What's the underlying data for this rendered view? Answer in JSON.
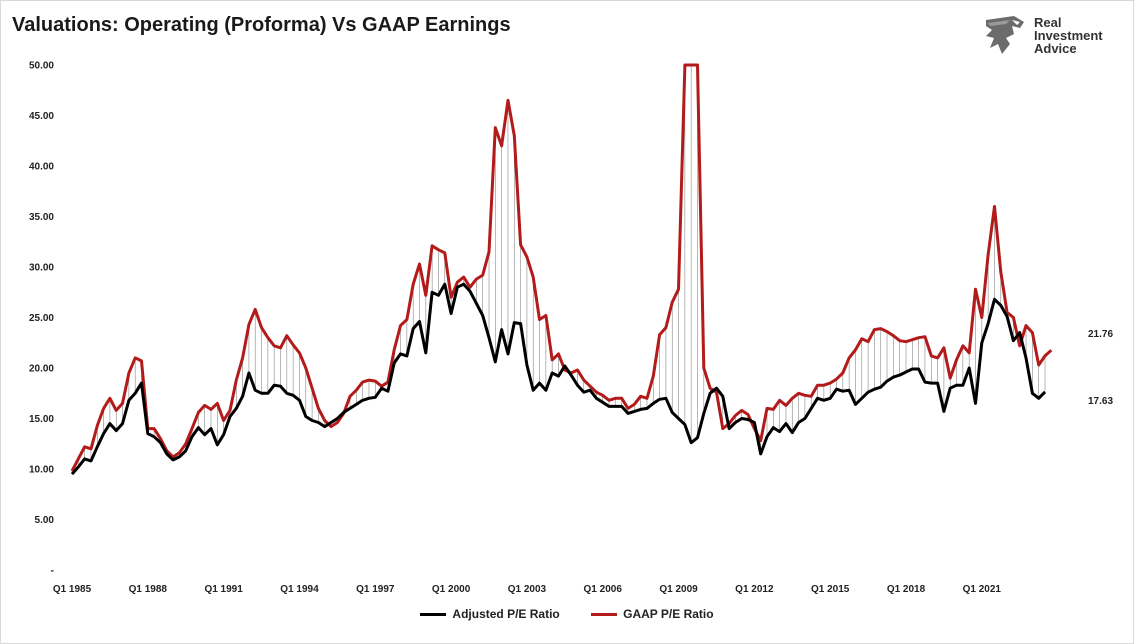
{
  "title": "Valuations: Operating (Proforma) Vs GAAP Earnings",
  "logo": {
    "name": "Real Investment Advice",
    "lines": [
      "Real",
      "Investment",
      "Advice"
    ],
    "icon": "eagle-head-icon"
  },
  "colors": {
    "adjusted": "#000000",
    "gaap": "#b31b1b",
    "drop": "#888888"
  },
  "chart_data": {
    "type": "line",
    "title": "Valuations: Operating (Proforma) Vs GAAP Earnings",
    "xlabel": "",
    "ylabel": "",
    "ylim": [
      0,
      50
    ],
    "yticks": [
      0,
      5,
      10,
      15,
      20,
      25,
      30,
      35,
      40,
      45,
      50
    ],
    "ytick_labels": [
      "-",
      "5.00",
      "10.00",
      "15.00",
      "20.00",
      "25.00",
      "30.00",
      "35.00",
      "40.00",
      "45.00",
      "50.00"
    ],
    "x_start": 1985.0,
    "x_step_years": 0.25,
    "xticks": [
      1985,
      1988,
      1991,
      1994,
      1997,
      2000,
      2003,
      2006,
      2009,
      2012,
      2015,
      2018,
      2021
    ],
    "xtick_labels": [
      "Q1 1985",
      "Q1 1988",
      "Q1 1991",
      "Q1 1994",
      "Q1 1997",
      "Q1 2000",
      "Q1 2003",
      "Q1 2006",
      "Q1 2009",
      "Q1 2012",
      "Q1 2015",
      "Q1 2018",
      "Q1 2021"
    ],
    "grid": false,
    "legend": "bottom",
    "drop_lines": true,
    "series": [
      {
        "name": "Adjusted P/E Ratio",
        "color": "#000000",
        "end_label": "17.63",
        "values": [
          9.5,
          10.2,
          11.0,
          10.8,
          12.2,
          13.5,
          14.5,
          13.8,
          14.5,
          16.8,
          17.5,
          18.5,
          13.5,
          13.2,
          12.6,
          11.5,
          10.9,
          11.2,
          11.8,
          13.2,
          14.1,
          13.4,
          14.0,
          12.4,
          13.4,
          15.2,
          16.0,
          17.2,
          19.5,
          17.8,
          17.5,
          17.5,
          18.3,
          18.2,
          17.5,
          17.3,
          16.8,
          15.2,
          14.8,
          14.6,
          14.2,
          14.6,
          15.0,
          15.6,
          16.0,
          16.4,
          16.8,
          17.0,
          17.1,
          18.0,
          17.7,
          20.5,
          21.4,
          21.2,
          23.9,
          24.6,
          21.5,
          27.5,
          27.2,
          28.3,
          25.4,
          28.0,
          28.3,
          27.6,
          26.4,
          25.2,
          23.0,
          20.6,
          23.8,
          21.4,
          24.5,
          24.4,
          20.3,
          17.8,
          18.5,
          17.8,
          19.5,
          19.2,
          20.2,
          19.3,
          18.3,
          17.6,
          17.8,
          17.0,
          16.6,
          16.2,
          16.2,
          16.2,
          15.5,
          15.7,
          15.9,
          16.0,
          16.5,
          16.9,
          17.0,
          15.6,
          15.0,
          14.4,
          12.6,
          13.1,
          15.5,
          17.5,
          18.0,
          17.2,
          14.0,
          14.6,
          15.0,
          14.9,
          14.6,
          11.5,
          13.2,
          14.1,
          13.7,
          14.5,
          13.6,
          14.6,
          15.0,
          16.0,
          17.0,
          16.8,
          17.0,
          17.9,
          17.7,
          17.8,
          16.4,
          17.0,
          17.6,
          17.9,
          18.1,
          18.7,
          19.1,
          19.3,
          19.6,
          19.9,
          19.9,
          18.6,
          18.5,
          18.5,
          15.7,
          18.0,
          18.3,
          18.3,
          20.0,
          16.5,
          22.5,
          24.4,
          26.8,
          26.2,
          25.1,
          22.7,
          23.5,
          21.0,
          17.5,
          17.0,
          17.63
        ]
      },
      {
        "name": "GAAP P/E Ratio",
        "color": "#b31b1b",
        "end_label": "21.76",
        "values": [
          9.8,
          11.0,
          12.2,
          12.0,
          14.3,
          16.0,
          17.0,
          15.8,
          16.5,
          19.5,
          21.0,
          20.7,
          14.0,
          14.0,
          13.0,
          11.8,
          11.2,
          11.6,
          12.5,
          14.0,
          15.6,
          16.3,
          15.9,
          16.5,
          14.8,
          15.8,
          18.8,
          21.0,
          24.3,
          25.8,
          24.0,
          23.0,
          22.2,
          22.0,
          23.2,
          22.3,
          21.5,
          20.0,
          18.0,
          16.0,
          14.8,
          14.2,
          14.6,
          15.5,
          17.2,
          17.8,
          18.6,
          18.8,
          18.7,
          18.2,
          18.6,
          21.8,
          24.2,
          24.8,
          28.3,
          30.3,
          27.2,
          32.1,
          31.7,
          31.4,
          27.0,
          28.5,
          29.0,
          28.0,
          28.8,
          29.2,
          31.5,
          43.8,
          42.0,
          46.5,
          43.0,
          32.2,
          31.0,
          29.0,
          24.8,
          25.2,
          20.8,
          21.4,
          19.8,
          19.5,
          19.8,
          18.8,
          18.2,
          17.6,
          17.3,
          16.8,
          17.0,
          17.0,
          16.0,
          16.4,
          17.2,
          17.0,
          19.2,
          23.3,
          24.0,
          26.5,
          27.8,
          50.5,
          50.5,
          50.5,
          20.0,
          18.0,
          17.6,
          14.0,
          14.5,
          15.3,
          15.8,
          15.4,
          14.0,
          12.8,
          16.0,
          15.9,
          16.8,
          16.3,
          17.0,
          17.5,
          17.3,
          17.2,
          18.3,
          18.3,
          18.5,
          18.9,
          19.5,
          21.0,
          21.8,
          22.9,
          22.6,
          23.8,
          23.9,
          23.6,
          23.2,
          22.7,
          22.6,
          22.8,
          23.0,
          23.1,
          21.2,
          21.0,
          22.0,
          19.0,
          20.8,
          22.2,
          21.5,
          27.8,
          25.0,
          31.2,
          36.0,
          29.5,
          25.5,
          25.0,
          22.2,
          24.2,
          23.5,
          20.3,
          21.2,
          21.76
        ]
      }
    ]
  }
}
